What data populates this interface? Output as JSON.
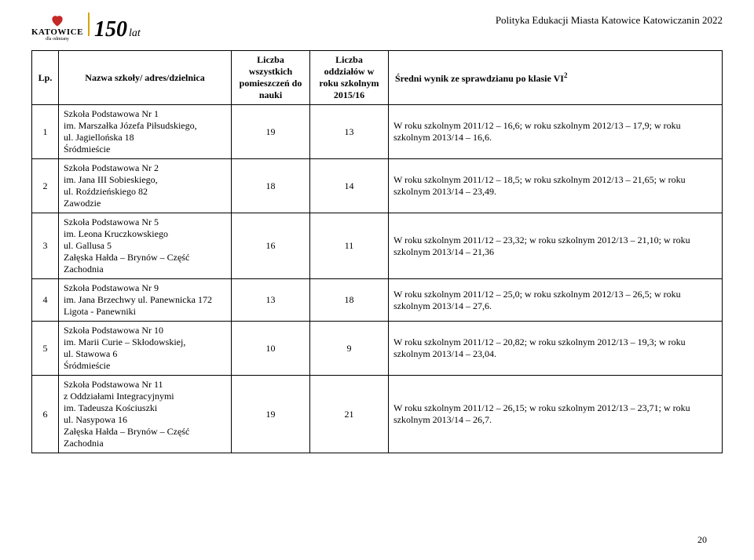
{
  "branding": {
    "city": "KATOWICE",
    "tagline": "dla odmiany",
    "anniversary_number": "150",
    "anniversary_suffix": "lat",
    "heart_color": "#c62828",
    "bar_color": "#d9a300"
  },
  "policy_title": "Polityka Edukacji Miasta Katowice Katowiczanin 2022",
  "columns": {
    "lp": "Lp.",
    "name": "Nazwa szkoły/ adres/dzielnica",
    "rooms": "Liczba wszystkich pomieszczeń do nauki",
    "units": "Liczba oddziałów w roku szkolnym 2015/16",
    "outcome_pre": "Średni wynik ze sprawdzianu po klasie VI",
    "outcome_sup": "2"
  },
  "rows": [
    {
      "lp": "1",
      "name": "Szkoła Podstawowa Nr 1\n im. Marszałka Józefa Piłsudskiego,\nul. Jagiellońska 18\nŚródmieście",
      "rooms": "19",
      "units": "13",
      "outcome": "W roku szkolnym 2011/12 – 16,6; w roku szkolnym 2012/13 – 17,9; w roku szkolnym 2013/14 – 16,6."
    },
    {
      "lp": "2",
      "name": "Szkoła Podstawowa Nr 2\nim. Jana III Sobieskiego,\nul. Roździeńskiego 82\nZawodzie",
      "rooms": "18",
      "units": "14",
      "outcome": "W roku szkolnym 2011/12 – 18,5; w roku szkolnym 2012/13 – 21,65; w roku szkolnym 2013/14 – 23,49."
    },
    {
      "lp": "3",
      "name": "Szkoła Podstawowa Nr 5\nim. Leona Kruczkowskiego\nul. Gallusa 5\nZałęska Hałda – Brynów – Część Zachodnia",
      "rooms": "16",
      "units": "11",
      "outcome": "W roku szkolnym 2011/12 – 23,32; w roku szkolnym 2012/13 – 21,10; w roku szkolnym 2013/14 – 21,36"
    },
    {
      "lp": "4",
      "name": "Szkoła Podstawowa Nr 9\n im. Jana Brzechwy ul. Panewnicka 172\nLigota - Panewniki",
      "rooms": "13",
      "units": "18",
      "outcome": "W roku szkolnym 2011/12 – 25,0; w roku szkolnym 2012/13 – 26,5; w roku szkolnym 2013/14 – 27,6."
    },
    {
      "lp": "5",
      "name": "Szkoła Podstawowa Nr 10\n im. Marii Curie – Skłodowskiej,\nul. Stawowa 6\nŚródmieście",
      "rooms": "10",
      "units": "9",
      "outcome": "W roku szkolnym 2011/12 – 20,82; w roku szkolnym 2012/13 – 19,3; w roku szkolnym 2013/14 – 23,04."
    },
    {
      "lp": "6",
      "name": "Szkoła Podstawowa Nr 11\nz Oddziałami Integracyjnymi\n im. Tadeusza Kościuszki\nul. Nasypowa 16\nZałęska Hałda – Brynów – Część Zachodnia",
      "rooms": "19",
      "units": "21",
      "outcome": "W roku szkolnym 2011/12 – 26,15; w roku szkolnym 2012/13 – 23,71; w roku szkolnym 2013/14 – 26,7."
    }
  ],
  "page_number": "20"
}
